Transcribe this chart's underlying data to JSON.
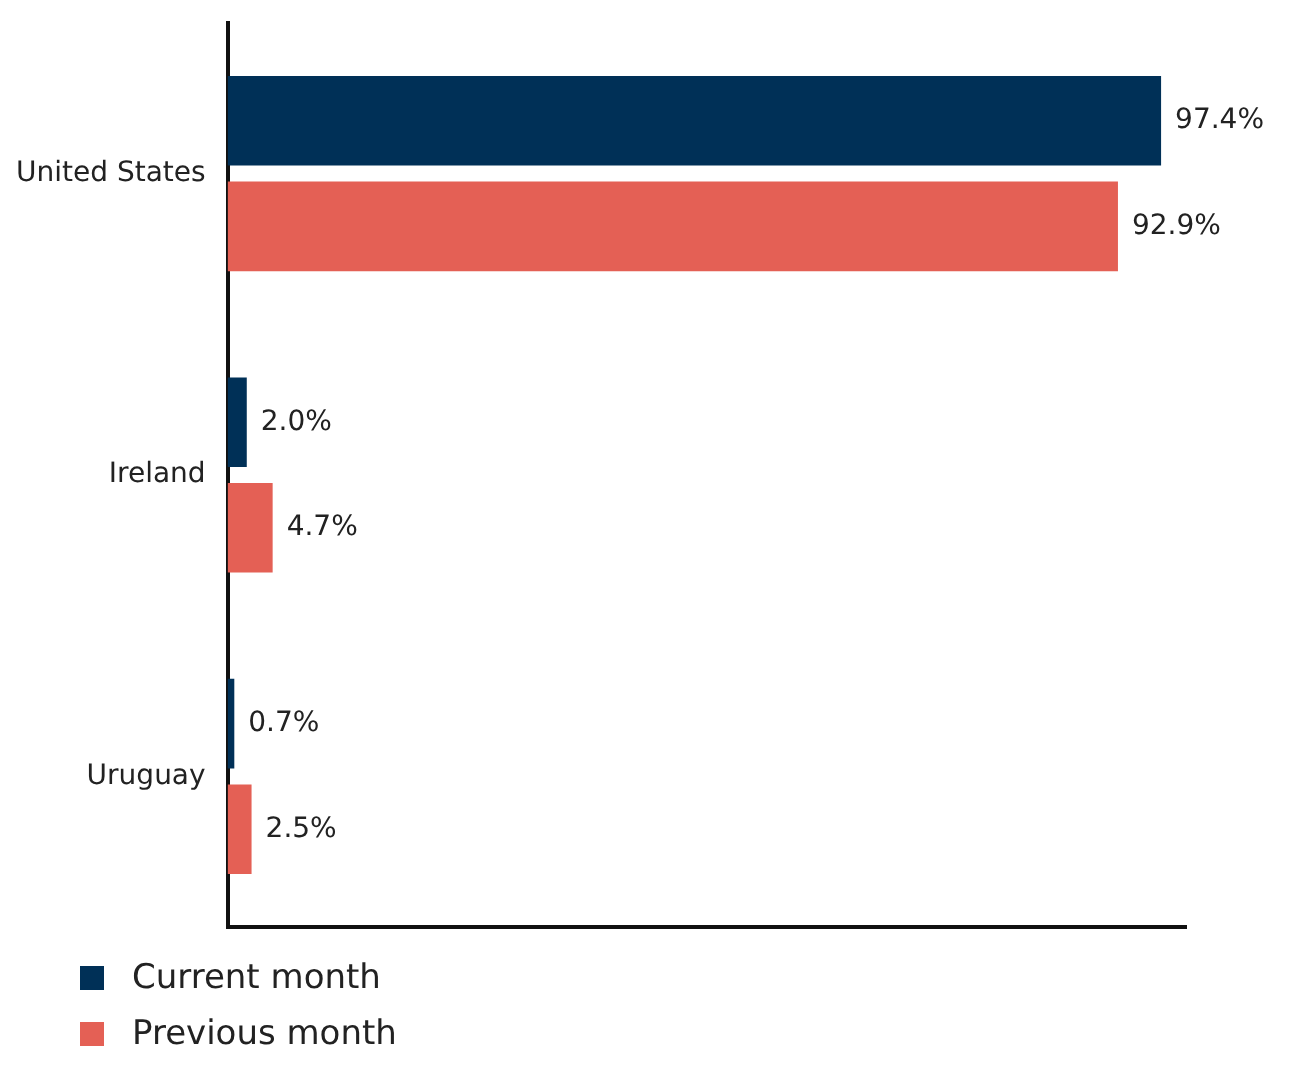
{
  "chart_data": {
    "type": "bar",
    "orientation": "horizontal",
    "categories": [
      "United States",
      "Ireland",
      "Uruguay"
    ],
    "series": [
      {
        "name": "Current month",
        "color": "#003057",
        "values": [
          97.4,
          2.0,
          0.7
        ],
        "value_labels": [
          "97.4%",
          "2.0%",
          "0.7%"
        ]
      },
      {
        "name": "Previous month",
        "color": "#e46055",
        "values": [
          92.9,
          4.7,
          2.5
        ],
        "value_labels": [
          "92.9%",
          "4.7%",
          "2.5%"
        ]
      }
    ],
    "legend": "bottom left",
    "grid": false,
    "tick_labels": "y"
  }
}
